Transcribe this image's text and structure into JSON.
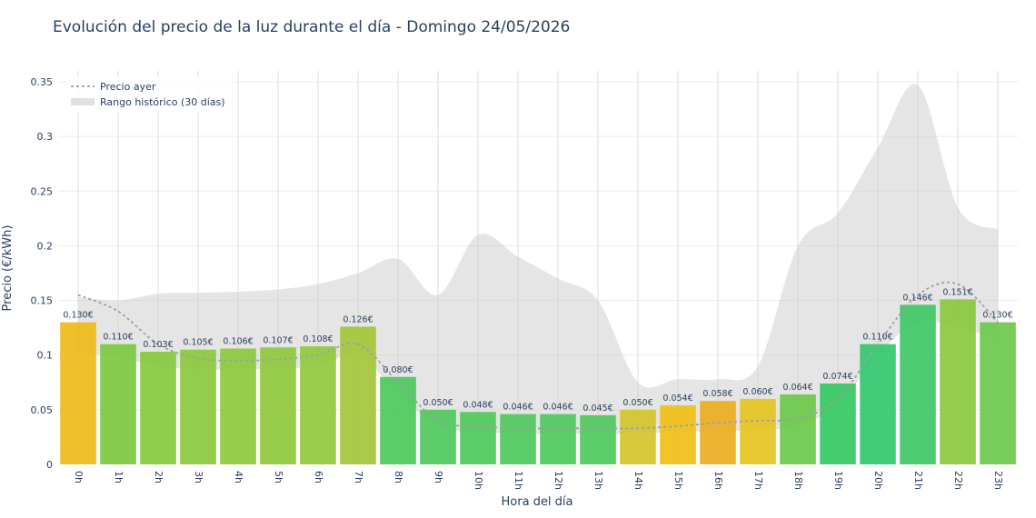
{
  "chart_data": {
    "type": "bar",
    "title": "Evolución del precio de la luz durante el día - Domingo 24/05/2026",
    "xlabel": "Hora del día",
    "ylabel": "Precio (€/kWh)",
    "ylim": [
      0,
      0.36
    ],
    "yticks": [
      {
        "value": 0,
        "label": "0"
      },
      {
        "value": 0.05,
        "label": "0.05"
      },
      {
        "value": 0.1,
        "label": "0.1"
      },
      {
        "value": 0.15,
        "label": "0.15"
      },
      {
        "value": 0.2,
        "label": "0.2"
      },
      {
        "value": 0.25,
        "label": "0.25"
      },
      {
        "value": 0.3,
        "label": "0.3"
      },
      {
        "value": 0.35,
        "label": "0.35"
      }
    ],
    "grid": true,
    "legend_position": "top-left",
    "categories": [
      "0h",
      "1h",
      "2h",
      "3h",
      "4h",
      "5h",
      "6h",
      "7h",
      "8h",
      "9h",
      "10h",
      "11h",
      "12h",
      "13h",
      "14h",
      "15h",
      "16h",
      "17h",
      "18h",
      "19h",
      "20h",
      "21h",
      "22h",
      "23h"
    ],
    "values": [
      0.13,
      0.11,
      0.103,
      0.105,
      0.106,
      0.107,
      0.108,
      0.126,
      0.08,
      0.05,
      0.048,
      0.046,
      0.046,
      0.045,
      0.05,
      0.054,
      0.058,
      0.06,
      0.064,
      0.074,
      0.11,
      0.146,
      0.151,
      0.13
    ],
    "value_labels": [
      "0.130€",
      "0.110€",
      "0.103€",
      "0.105€",
      "0.106€",
      "0.107€",
      "0.108€",
      "0.126€",
      "0.080€",
      "0.050€",
      "0.048€",
      "0.046€",
      "0.046€",
      "0.045€",
      "0.050€",
      "0.054€",
      "0.058€",
      "0.060€",
      "0.064€",
      "0.074€",
      "0.110€",
      "0.146€",
      "0.151€",
      "0.130€"
    ],
    "bar_colors": [
      "#efba1a",
      "#7cc842",
      "#86c93e",
      "#8bc93c",
      "#8dc93c",
      "#8fc93c",
      "#90c93c",
      "#a5c53a",
      "#4dc85a",
      "#4fc95c",
      "#4fc95c",
      "#4fc95c",
      "#4fc95c",
      "#4fc95c",
      "#d4c42a",
      "#f0c018",
      "#edad1e",
      "#e6c322",
      "#6cc84a",
      "#34c862",
      "#33c86c",
      "#3fc866",
      "#8bc93c",
      "#6cc84a"
    ],
    "yesterday_series": {
      "name": "Precio ayer",
      "values": [
        0.155,
        0.14,
        0.11,
        0.097,
        0.095,
        0.096,
        0.1,
        0.11,
        0.075,
        0.04,
        0.035,
        0.033,
        0.033,
        0.033,
        0.033,
        0.035,
        0.038,
        0.04,
        0.042,
        0.06,
        0.11,
        0.155,
        0.165,
        0.13
      ],
      "color": "#9aa0a6"
    },
    "historical_range": {
      "name": "Rango histórico (30 días)",
      "upper": [
        0.153,
        0.15,
        0.156,
        0.157,
        0.158,
        0.16,
        0.165,
        0.175,
        0.188,
        0.155,
        0.21,
        0.19,
        0.17,
        0.15,
        0.075,
        0.078,
        0.078,
        0.09,
        0.2,
        0.23,
        0.29,
        0.347,
        0.235,
        0.215
      ],
      "lower": [
        0.102,
        0.098,
        0.09,
        0.087,
        0.087,
        0.088,
        0.09,
        0.1,
        0.065,
        0.035,
        0.03,
        0.028,
        0.028,
        0.028,
        0.028,
        0.03,
        0.03,
        0.032,
        0.035,
        0.055,
        0.1,
        0.13,
        0.125,
        0.115
      ],
      "color": "#cccccc"
    }
  }
}
